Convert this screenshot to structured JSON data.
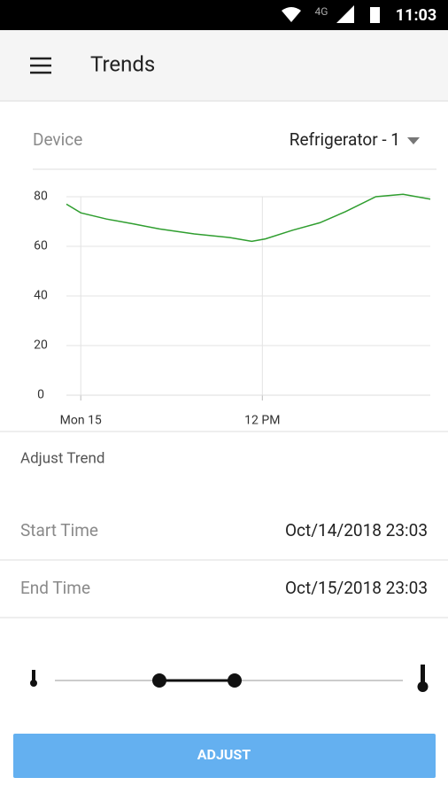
{
  "status_bar": {
    "network": "4G",
    "time": "11:03"
  },
  "app_bar": {
    "title": "Trends"
  },
  "device": {
    "label": "Device",
    "value": "Refrigerator - 1"
  },
  "chart_data": {
    "type": "line",
    "x": [
      -0.95,
      0,
      1.7,
      3.5,
      5.2,
      7.5,
      9.9,
      11.3,
      12.2,
      14,
      15.8,
      17.5,
      19.5,
      21.3,
      23.1
    ],
    "values": [
      77,
      73.5,
      71,
      69,
      67,
      65,
      63.5,
      62,
      63,
      66.5,
      69.5,
      74,
      80,
      81,
      79
    ],
    "color": "#2f9e2f",
    "xlim": [
      -0.95,
      23.1
    ],
    "xticks": [
      {
        "value": 0,
        "label": "Mon 15"
      },
      {
        "value": 12,
        "label": "12 PM"
      }
    ],
    "ylim": [
      0,
      80
    ],
    "yticks": [
      0,
      20,
      40,
      60,
      80
    ],
    "grid": true
  },
  "adjust": {
    "title": "Adjust Trend",
    "start": {
      "label": "Start Time",
      "value": "Oct/14/2018 23:03"
    },
    "end": {
      "label": "End Time",
      "value": "Oct/15/2018 23:03"
    },
    "button": "ADJUST"
  }
}
